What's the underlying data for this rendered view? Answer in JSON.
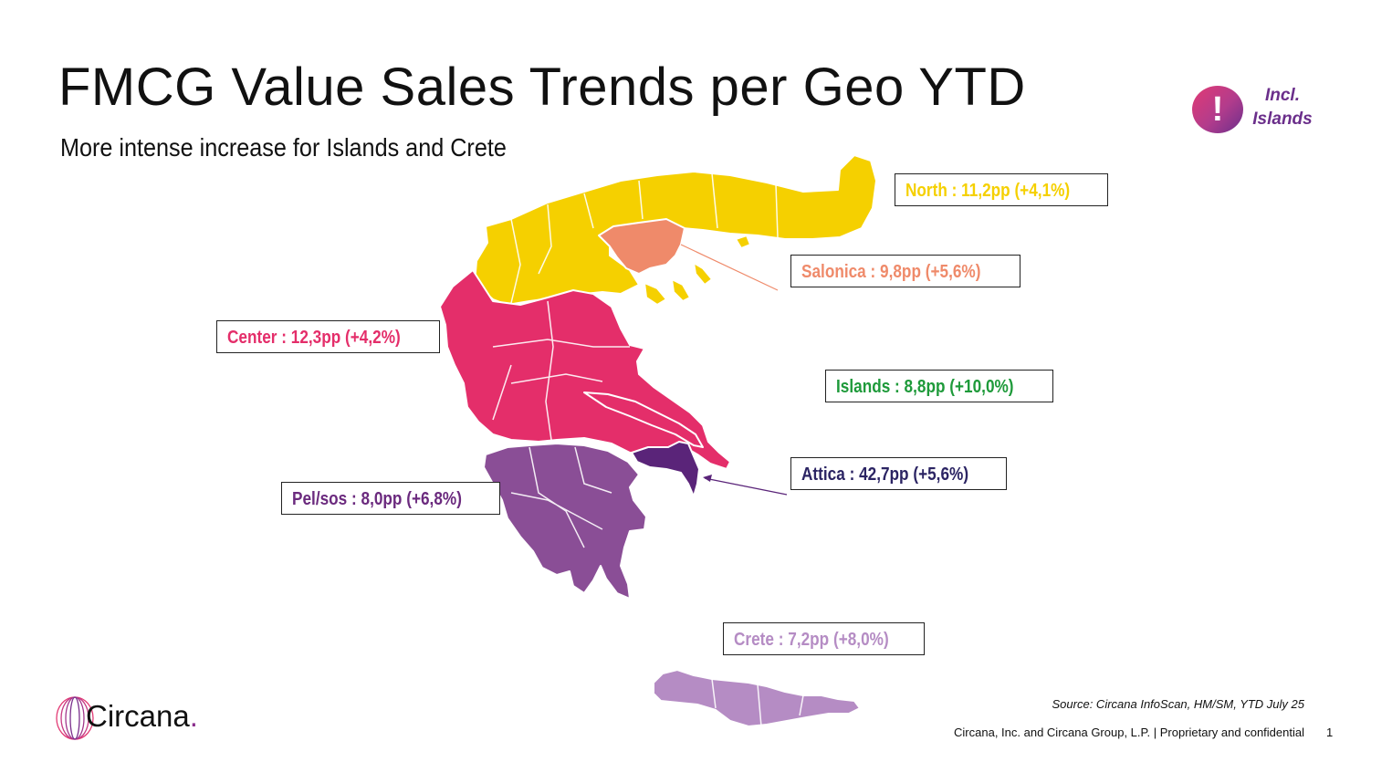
{
  "title": "FMCG Value Sales Trends per Geo YTD",
  "subtitle": "More intense increase for Islands and Crete",
  "notice": {
    "icon": "!",
    "text_line1": "Incl.",
    "text_line2": "Islands"
  },
  "regions": {
    "north": {
      "label": "North : 11,2pp (+4,1%)",
      "color": "#f5d000"
    },
    "salonica": {
      "label": "Salonica : 9,8pp (+5,6%)",
      "color": "#ef8a6a"
    },
    "center": {
      "label": "Center : 12,3pp (+4,2%)",
      "color": "#e42e6a"
    },
    "islands": {
      "label": "Islands : 8,8pp (+10,0%)",
      "color": "#1e9a3a"
    },
    "attica": {
      "label": "Attica : 42,7pp (+5,6%)",
      "color": "#2b2463",
      "fill": "#5a2479"
    },
    "pelsos": {
      "label": "Pel/sos : 8,0pp (+6,8%)",
      "color": "#6b2a7e",
      "fill": "#8a4e96"
    },
    "crete": {
      "label": "Crete : 7,2pp (+8,0%)",
      "color": "#b58cc4"
    }
  },
  "source": "Source: Circana InfoScan, HM/SM, YTD July 25",
  "footer": "Circana, Inc. and Circana Group, L.P. |  Proprietary and confidential",
  "page_number": "1",
  "logo": {
    "name": "Circana",
    "dot": "."
  }
}
